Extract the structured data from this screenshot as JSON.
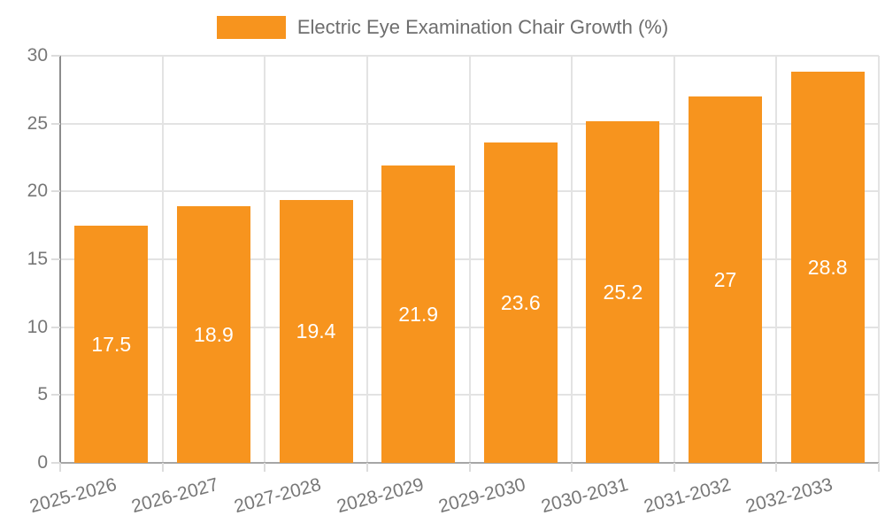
{
  "legend": {
    "label": "Electric Eye Examination Chair Growth (%)"
  },
  "chart_data": {
    "type": "bar",
    "title": "Electric Eye Examination Chair Growth (%)",
    "categories": [
      "2025-2026",
      "2026-2027",
      "2027-2028",
      "2028-2029",
      "2029-2030",
      "2030-2031",
      "2031-2032",
      "2032-2033"
    ],
    "values": [
      17.5,
      18.9,
      19.4,
      21.9,
      23.6,
      25.2,
      27,
      28.8
    ],
    "xlabel": "",
    "ylabel": "",
    "ylim": [
      0,
      30
    ],
    "yticks": [
      0,
      5,
      10,
      15,
      20,
      25,
      30
    ],
    "grid": true,
    "legend_position": "top"
  },
  "colors": {
    "bar": "#F7941E",
    "bar_value_text": "#FFFFFF",
    "grid": "#E3E3E3",
    "axis_line": "#A6A6A6",
    "axis_line_left": "#8C8C8C",
    "tick": "#DCDCDC",
    "tick_label": "#777777",
    "legend_text": "#6E6E6E",
    "background": "#FFFFFF"
  }
}
